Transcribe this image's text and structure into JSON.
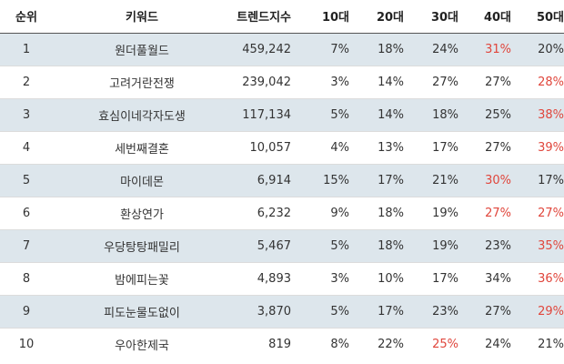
{
  "headers": [
    "순위",
    "키워드",
    "트렌드지수",
    "10대",
    "20대",
    "30대",
    "40대",
    "50대"
  ],
  "highlight_color": "#e0463c",
  "stripe_color": "#dde6ec",
  "rows": [
    {
      "rank": "1",
      "keyword": "원더풀월드",
      "index": "459,242",
      "pct": [
        "7%",
        "18%",
        "24%",
        "31%",
        "20%"
      ],
      "highlight": [
        false,
        false,
        false,
        true,
        false
      ]
    },
    {
      "rank": "2",
      "keyword": "고려거란전쟁",
      "index": "239,042",
      "pct": [
        "3%",
        "14%",
        "27%",
        "27%",
        "28%"
      ],
      "highlight": [
        false,
        false,
        false,
        false,
        true
      ]
    },
    {
      "rank": "3",
      "keyword": "효심이네각자도생",
      "index": "117,134",
      "pct": [
        "5%",
        "14%",
        "18%",
        "25%",
        "38%"
      ],
      "highlight": [
        false,
        false,
        false,
        false,
        true
      ]
    },
    {
      "rank": "4",
      "keyword": "세번째결혼",
      "index": "10,057",
      "pct": [
        "4%",
        "13%",
        "17%",
        "27%",
        "39%"
      ],
      "highlight": [
        false,
        false,
        false,
        false,
        true
      ]
    },
    {
      "rank": "5",
      "keyword": "마이데몬",
      "index": "6,914",
      "pct": [
        "15%",
        "17%",
        "21%",
        "30%",
        "17%"
      ],
      "highlight": [
        false,
        false,
        false,
        true,
        false
      ]
    },
    {
      "rank": "6",
      "keyword": "환상연가",
      "index": "6,232",
      "pct": [
        "9%",
        "18%",
        "19%",
        "27%",
        "27%"
      ],
      "highlight": [
        false,
        false,
        false,
        true,
        true
      ]
    },
    {
      "rank": "7",
      "keyword": "우당탕탕패밀리",
      "index": "5,467",
      "pct": [
        "5%",
        "18%",
        "19%",
        "23%",
        "35%"
      ],
      "highlight": [
        false,
        false,
        false,
        false,
        true
      ]
    },
    {
      "rank": "8",
      "keyword": "밤에피는꽃",
      "index": "4,893",
      "pct": [
        "3%",
        "10%",
        "17%",
        "34%",
        "36%"
      ],
      "highlight": [
        false,
        false,
        false,
        false,
        true
      ]
    },
    {
      "rank": "9",
      "keyword": "피도눈물도없이",
      "index": "3,870",
      "pct": [
        "5%",
        "17%",
        "23%",
        "27%",
        "29%"
      ],
      "highlight": [
        false,
        false,
        false,
        false,
        true
      ]
    },
    {
      "rank": "10",
      "keyword": "우아한제국",
      "index": "819",
      "pct": [
        "8%",
        "22%",
        "25%",
        "24%",
        "21%"
      ],
      "highlight": [
        false,
        false,
        true,
        false,
        false
      ]
    }
  ]
}
